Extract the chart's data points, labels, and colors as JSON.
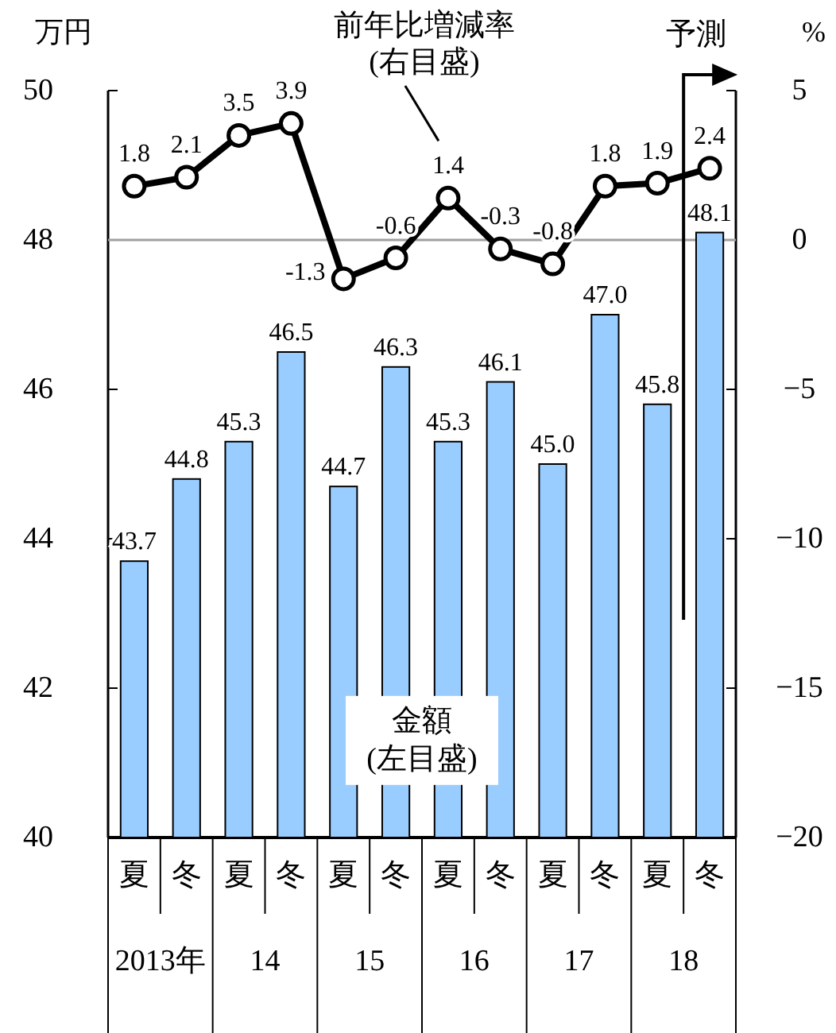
{
  "chart_data": {
    "type": "bar",
    "ylabel": "万円",
    "y2label": "%",
    "categories": [
      "夏",
      "冬",
      "夏",
      "冬",
      "夏",
      "冬",
      "夏",
      "冬",
      "夏",
      "冬",
      "夏",
      "冬"
    ],
    "series": [
      {
        "name": "金額\n(左目盛)",
        "axis": "y",
        "color": "#99ccff",
        "values": [
          43.7,
          44.8,
          45.3,
          46.5,
          44.7,
          46.3,
          45.3,
          46.1,
          45.0,
          47.0,
          45.8,
          48.1
        ],
        "value_labels": [
          "43.7",
          "44.8",
          "45.3",
          "46.5",
          "44.7",
          "46.3",
          "45.3",
          "46.1",
          "45.0",
          "47.0",
          "45.8",
          "48.1"
        ]
      },
      {
        "name": "前年比増減率\n(右目盛)",
        "type": "line",
        "axis": "y2",
        "color": "#000000",
        "marker": "circle",
        "values": [
          1.8,
          2.1,
          3.5,
          3.9,
          -1.3,
          -0.6,
          1.4,
          -0.3,
          -0.8,
          1.8,
          1.9,
          2.4
        ],
        "value_labels": [
          "1.8",
          "2.1",
          "3.5",
          "3.9",
          "-1.3",
          "-0.6",
          "1.4",
          "-0.3",
          "-0.8",
          "1.8",
          "1.9",
          "2.4"
        ]
      }
    ],
    "ylim": [
      40,
      50
    ],
    "yticks": [
      40,
      42,
      44,
      46,
      48,
      50
    ],
    "y2lim": [
      -20,
      5
    ],
    "y2ticks": [
      -20,
      -15,
      -10,
      -5,
      0,
      5
    ],
    "ref_lines": [
      {
        "axis": "y2",
        "value": 0,
        "color": "#a0a0a0"
      }
    ],
    "grid": false,
    "annotations": [
      "2013年",
      "14",
      "15",
      "16",
      "17",
      "18",
      "予測"
    ]
  }
}
